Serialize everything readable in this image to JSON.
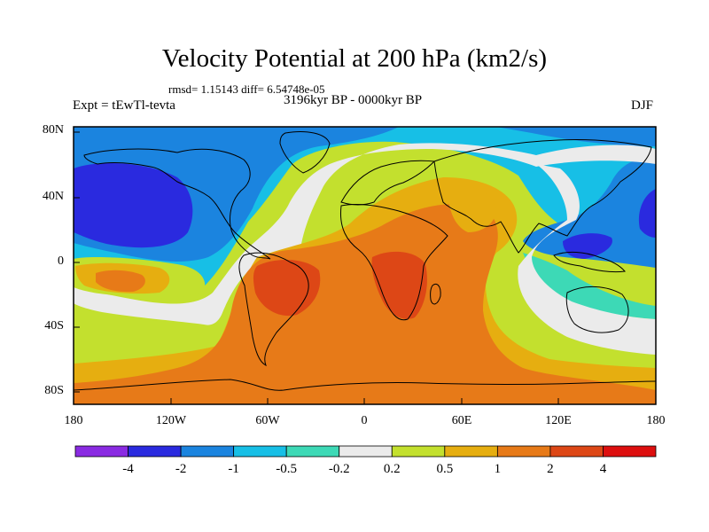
{
  "header": {
    "title": "Velocity Potential at 200 hPa (km2/s)",
    "stats": "rmsd= 1.15143 diff= 6.54748e-05",
    "experiment": "Expt = tEwTl-tevta",
    "period": "3196kyr BP - 0000kyr BP",
    "season": "DJF"
  },
  "axes": {
    "lat_labels": [
      "80N",
      "40N",
      "0",
      "40S",
      "80S"
    ],
    "lon_labels": [
      "180",
      "120W",
      "60W",
      "0",
      "60E",
      "120E",
      "180"
    ]
  },
  "colorbar": {
    "labels": [
      "-4",
      "-2",
      "-1",
      "-0.5",
      "-0.2",
      "0.2",
      "0.5",
      "1",
      "2",
      "4"
    ],
    "colors": [
      "#8a2be2",
      "#2a2adf",
      "#1b84df",
      "#17bfe6",
      "#3dd9b6",
      "#ebebeb",
      "#c3e02e",
      "#e6ae10",
      "#e77a18",
      "#dd4716",
      "#dd0f0f"
    ]
  },
  "map_colors": {
    "strong_neg": "#2a2adf",
    "neg": "#1b84df",
    "mid_neg": "#17bfe6",
    "weak_neg": "#3dd9b6",
    "neutral": "#ebebeb",
    "weak_pos": "#c3e02e",
    "pos": "#e6ae10",
    "mid_pos": "#e77a18",
    "strong_pos": "#dd4716"
  }
}
